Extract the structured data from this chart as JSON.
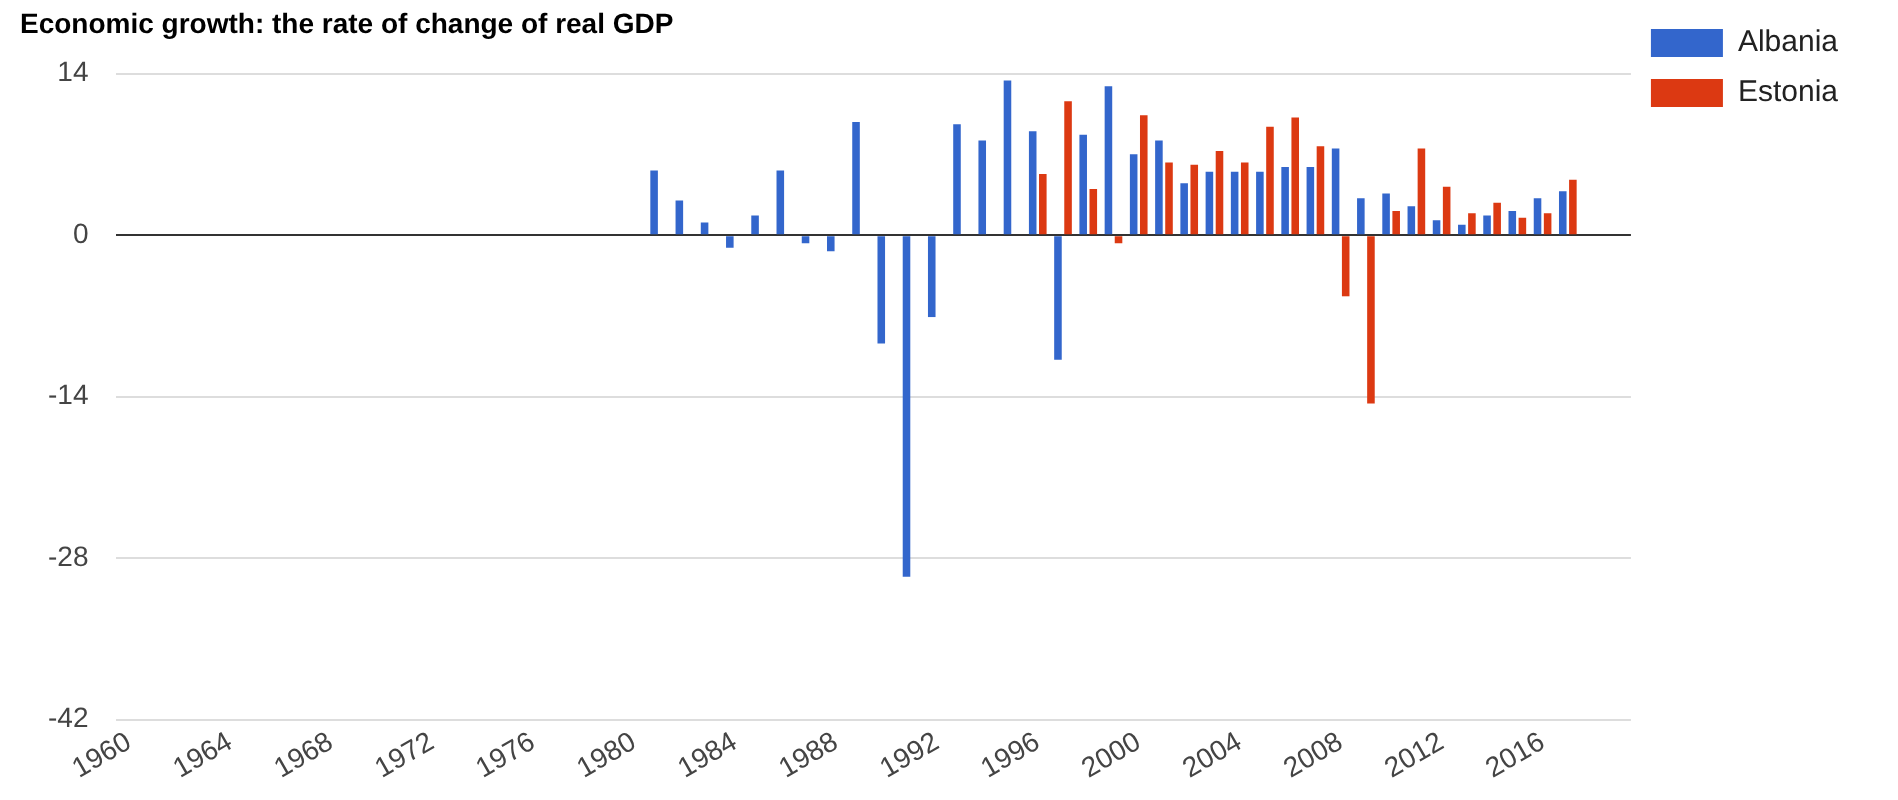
{
  "chart_data": {
    "type": "bar",
    "title": "Economic growth: the rate of change of real GDP",
    "categories": [
      "1960",
      null,
      null,
      null,
      "1964",
      null,
      null,
      null,
      "1968",
      null,
      null,
      null,
      "1972",
      null,
      null,
      null,
      "1976",
      null,
      null,
      null,
      "1980",
      null,
      null,
      null,
      "1984",
      null,
      null,
      null,
      "1988",
      null,
      null,
      null,
      "1992",
      null,
      null,
      null,
      "1996",
      null,
      null,
      null,
      "2000",
      null,
      null,
      null,
      "2004",
      null,
      null,
      null,
      "2008",
      null,
      null,
      null,
      "2012",
      null,
      null,
      null,
      "2016",
      null,
      null,
      null
    ],
    "series": [
      {
        "name": "Albania",
        "color": "#3366cc",
        "values": [
          null,
          null,
          null,
          null,
          null,
          null,
          null,
          null,
          null,
          null,
          null,
          null,
          null,
          null,
          null,
          null,
          null,
          null,
          null,
          null,
          null,
          5.6,
          3.0,
          1.1,
          -1.1,
          1.7,
          5.6,
          -0.7,
          -1.4,
          9.8,
          -9.4,
          -29.6,
          -7.1,
          9.6,
          8.2,
          13.4,
          9.0,
          -10.8,
          8.7,
          12.9,
          7.0,
          8.2,
          4.5,
          5.5,
          5.5,
          5.5,
          5.9,
          5.9,
          7.5,
          3.2,
          3.6,
          2.5,
          1.3,
          0.9,
          1.7,
          2.1,
          3.2,
          3.8,
          null,
          null
        ]
      },
      {
        "name": "Estonia",
        "color": "#dc3912",
        "values": [
          null,
          null,
          null,
          null,
          null,
          null,
          null,
          null,
          null,
          null,
          null,
          null,
          null,
          null,
          null,
          null,
          null,
          null,
          null,
          null,
          null,
          null,
          null,
          null,
          null,
          null,
          null,
          null,
          null,
          null,
          null,
          null,
          null,
          null,
          null,
          null,
          5.3,
          11.6,
          4.0,
          -0.7,
          10.4,
          6.3,
          6.1,
          7.3,
          6.3,
          9.4,
          10.2,
          7.7,
          -5.3,
          -14.6,
          2.1,
          7.5,
          4.2,
          1.9,
          2.8,
          1.5,
          1.9,
          4.8,
          null,
          null
        ]
      }
    ],
    "ylim": [
      -42,
      14
    ],
    "yticks": [
      -42,
      -28,
      -14,
      0,
      14
    ],
    "grid": "y",
    "legend": "right"
  }
}
